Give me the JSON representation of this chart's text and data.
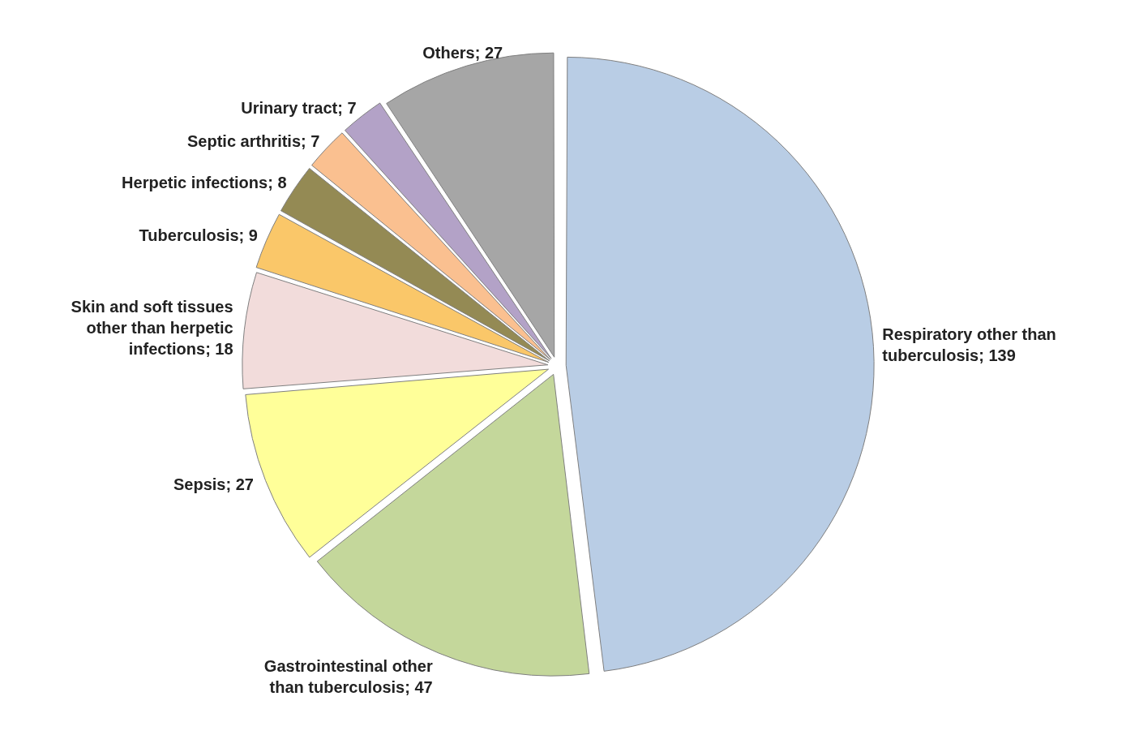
{
  "chart_data": {
    "type": "pie",
    "categories": [
      "Respiratory other than tuberculosis; 139",
      "Gastrointestinal other than tuberculosis; 47",
      "Sepsis; 27",
      "Skin and soft tissues other than herpetic infections; 18",
      "Tuberculosis; 9",
      "Herpetic infections; 8",
      "Septic arthritis; 7",
      "Urinary tract; 7",
      "Others; 27"
    ],
    "values": [
      139,
      47,
      27,
      18,
      9,
      8,
      7,
      7,
      27
    ],
    "colors": [
      "#b9cde5",
      "#c4d79b",
      "#ffff99",
      "#f2dcdb",
      "#fac769",
      "#948a54",
      "#fac090",
      "#b3a2c7",
      "#a6a6a6"
    ],
    "legend": false
  }
}
